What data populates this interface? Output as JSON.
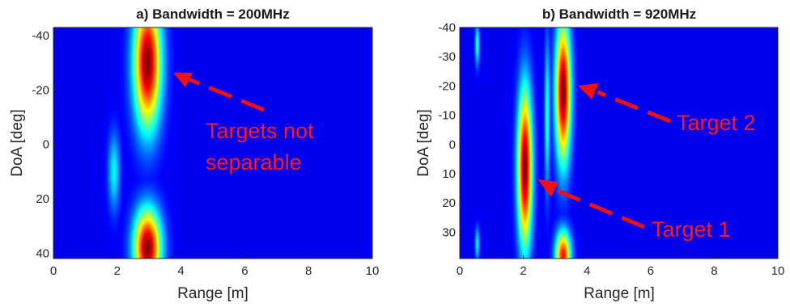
{
  "chart_data": [
    {
      "type": "heatmap",
      "title": "a) Bandwidth = 200MHz",
      "xlabel": "Range [m]",
      "ylabel": "DoA [deg]",
      "xlim": [
        0,
        10
      ],
      "ylim": [
        -43,
        42
      ],
      "y_reversed": true,
      "xticks": [
        0,
        2,
        4,
        6,
        8,
        10
      ],
      "yticks": [
        -40,
        -20,
        0,
        20,
        40
      ],
      "colormap": "jet",
      "background_color": "#00008f",
      "grid": false,
      "blobs": [
        {
          "x": 2.95,
          "y": -30,
          "sx": 0.3,
          "sy": 17,
          "amp": 1.0
        },
        {
          "x": 2.95,
          "y": 38,
          "sx": 0.3,
          "sy": 10,
          "amp": 1.0
        },
        {
          "x": 1.9,
          "y": 10,
          "sx": 0.13,
          "sy": 10,
          "amp": 0.3
        }
      ],
      "annotations": [
        {
          "text": "Targets not separable",
          "lines": [
            "Targets not",
            "separable"
          ],
          "x": 4.7,
          "y": -2,
          "arrow_from": [
            6.6,
            -16
          ],
          "arrow_to": [
            3.8,
            -26
          ]
        }
      ]
    },
    {
      "type": "heatmap",
      "title": "b) Bandwidth = 920MHz",
      "xlabel": "Range [m]",
      "ylabel": "DoA [deg]",
      "xlim": [
        0,
        10
      ],
      "ylim": [
        -40,
        39
      ],
      "y_reversed": true,
      "xticks": [
        0,
        2,
        4,
        6,
        8,
        10
      ],
      "yticks": [
        -40,
        -30,
        -20,
        -10,
        0,
        10,
        20,
        30
      ],
      "colormap": "jet",
      "background_color": "#00008f",
      "grid": false,
      "blobs": [
        {
          "x": 2.05,
          "y": 8,
          "sx": 0.16,
          "sy": 19,
          "amp": 1.0
        },
        {
          "x": 3.25,
          "y": -18,
          "sx": 0.17,
          "sy": 17,
          "amp": 1.0
        },
        {
          "x": 3.25,
          "y": 38,
          "sx": 0.17,
          "sy": 6,
          "amp": 0.85
        },
        {
          "x": 0.55,
          "y": -34,
          "sx": 0.05,
          "sy": 5,
          "amp": 0.35
        },
        {
          "x": 0.55,
          "y": 34,
          "sx": 0.05,
          "sy": 4,
          "amp": 0.3
        },
        {
          "x": 2.75,
          "y": -10,
          "sx": 0.06,
          "sy": 18,
          "amp": 0.35
        }
      ],
      "annotations": [
        {
          "text": "Target 2",
          "x": 6.7,
          "y": -9,
          "arrow_from": [
            6.5,
            -10
          ],
          "arrow_to": [
            3.65,
            -20
          ]
        },
        {
          "text": "Target 1",
          "x": 5.9,
          "y": 29,
          "arrow_from": [
            5.6,
            28
          ],
          "arrow_to": [
            2.4,
            13
          ]
        }
      ]
    }
  ]
}
